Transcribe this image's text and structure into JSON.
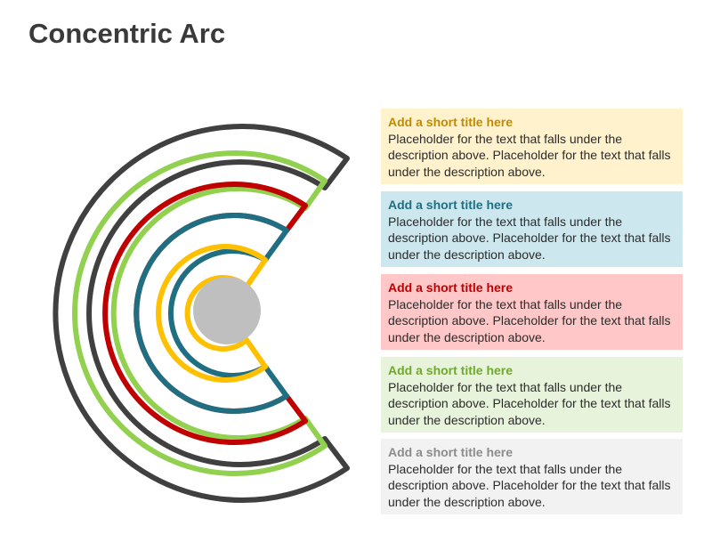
{
  "slide": {
    "title": "Concentric Arc"
  },
  "colors": {
    "arc_outer": "#404040",
    "arc_green": "#92d050",
    "arc_red": "#c00000",
    "arc_teal": "#1f6e82",
    "arc_yellow": "#ffc000",
    "center_circle": "#bfbfbf"
  },
  "boxes": [
    {
      "title": "Add a short title here",
      "text": "Placeholder for the text that falls under the description above. Placeholder for the text that falls under the description above.",
      "title_color": "#c28a00",
      "bg": "#fff2cc"
    },
    {
      "title": "Add a short title here",
      "text": "Placeholder for the text that falls under the description above. Placeholder for the text that falls under the description above.",
      "title_color": "#1f6e82",
      "bg": "#cde7ef"
    },
    {
      "title": "Add a short title here",
      "text": "Placeholder for the text that falls under the description above. Placeholder for the text that falls under the description above.",
      "title_color": "#c00000",
      "bg": "#ffc7c7"
    },
    {
      "title": "Add a short title here",
      "text": "Placeholder for the text that falls under the description above. Placeholder for the text that falls under the description above.",
      "title_color": "#70a82e",
      "bg": "#e8f3dc"
    },
    {
      "title": "Add a short title here",
      "text": "Placeholder for the text that falls under the description above. Placeholder for the text that falls under the description above.",
      "title_color": "#8c8c8c",
      "bg": "#f2f2f2"
    }
  ]
}
